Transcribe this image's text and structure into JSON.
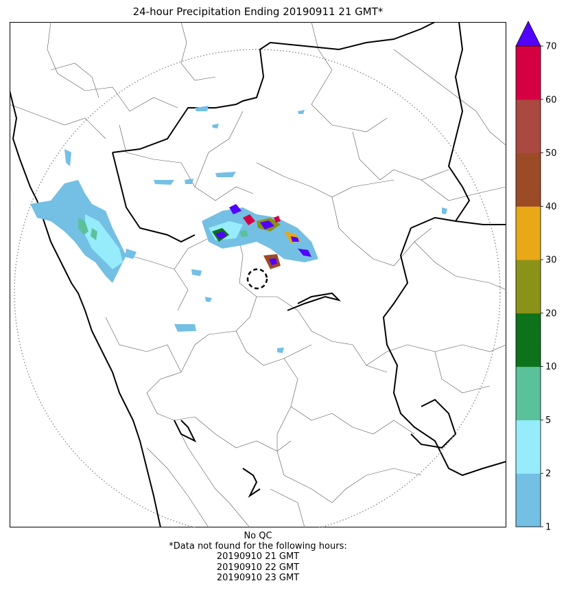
{
  "title": "24-hour Precipitation Ending 20190911 21 GMT*",
  "notes": {
    "qc": "No QC",
    "missing_header": "*Data not found for the following hours:",
    "missing_hours": [
      "20190910 21 GMT",
      "20190910 22 GMT",
      "20190910 23 GMT"
    ]
  },
  "colorbar": {
    "levels": [
      "1",
      "2",
      "5",
      "10",
      "20",
      "30",
      "40",
      "50",
      "60",
      "70"
    ],
    "colors": [
      "#74bfe4",
      "#96ecfb",
      "#5ac29b",
      "#0e721a",
      "#8a9318",
      "#e8a818",
      "#9c4b27",
      "#a9493f",
      "#d50044"
    ],
    "extend_color": "#5200ff"
  },
  "legend_palette": {
    "light_blue": "#74bfe4",
    "cyan": "#96ecfb",
    "green_light": "#5ac29b",
    "green_dark": "#0e721a",
    "olive": "#8a9318",
    "orange": "#e8a818",
    "brown": "#9c4b27",
    "red": "#d50044",
    "purple": "#5200ff"
  },
  "map": {
    "range_ring": "dotted-gray",
    "radar_site_marker": "dashed-circle"
  }
}
